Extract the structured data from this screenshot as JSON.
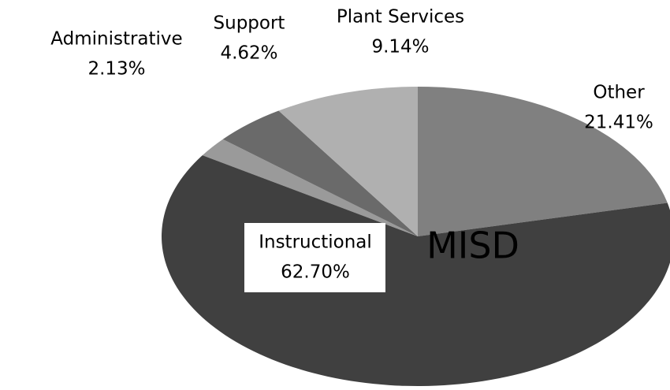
{
  "chart_data": {
    "type": "pie",
    "title": "MISD",
    "categories": [
      "Administrative",
      "Support",
      "Plant Services",
      "Other",
      "Instructional"
    ],
    "values": [
      2.13,
      4.62,
      9.14,
      21.41,
      62.7
    ],
    "value_labels": [
      "2.13%",
      "4.62%",
      "9.14%",
      "21.41%",
      "62.70%"
    ],
    "colors": [
      "#9a9a9a",
      "#6a6a6a",
      "#b0b0b0",
      "#808080",
      "#404040"
    ]
  }
}
